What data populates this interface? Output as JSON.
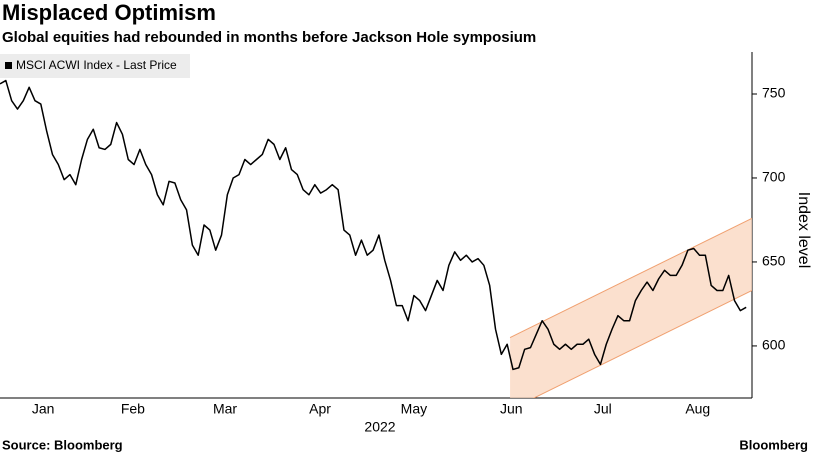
{
  "chart_data": {
    "type": "line",
    "title": "Misplaced Optimism",
    "subtitle": "Global equities had rebounded in months before Jackson Hole symposium",
    "legend_label": "MSCI ACWI Index - Last Price",
    "y_axis_label": "Index level",
    "x_axis_label": "2022",
    "source": "Source: Bloomberg",
    "brand": "Bloomberg",
    "color": "#000000",
    "values": [
      756,
      758,
      746,
      741,
      746,
      754,
      746,
      744,
      728,
      714,
      708,
      699,
      702,
      696,
      711,
      723,
      729,
      718,
      717,
      720,
      733,
      726,
      711,
      708,
      717,
      708,
      702,
      690,
      684,
      698,
      697,
      687,
      681,
      660,
      654,
      672,
      669,
      657,
      666,
      690,
      700,
      702,
      711,
      708,
      711,
      714,
      723,
      720,
      711,
      718,
      705,
      702,
      693,
      690,
      696,
      691,
      693,
      696,
      693,
      669,
      666,
      654,
      663,
      654,
      657,
      666,
      651,
      639,
      624,
      624,
      615,
      630,
      627,
      621,
      630,
      639,
      633,
      648,
      656,
      651,
      654,
      650,
      652,
      648,
      636,
      610,
      595,
      601,
      586,
      587,
      598,
      599,
      607,
      615,
      610,
      601,
      598,
      601,
      598,
      601,
      601,
      604,
      595,
      589,
      601,
      610,
      618,
      615,
      615,
      627,
      633,
      638,
      633,
      640,
      645,
      642,
      642,
      648,
      657,
      658,
      654,
      654,
      636,
      633,
      633,
      642,
      627,
      621,
      623
    ],
    "xlim": [
      0,
      129
    ],
    "xticks": [
      {
        "value": 7.4,
        "label": "Jan"
      },
      {
        "value": 22.8,
        "label": "Feb"
      },
      {
        "value": 38.6,
        "label": "Mar"
      },
      {
        "value": 54.9,
        "label": "Apr"
      },
      {
        "value": 71,
        "label": "May"
      },
      {
        "value": 87.7,
        "label": "Jun"
      },
      {
        "value": 103.4,
        "label": "Jul"
      },
      {
        "value": 119.7,
        "label": "Aug"
      }
    ],
    "ylim": [
      569,
      775
    ],
    "yticks": [
      600,
      650,
      700,
      750
    ],
    "channel": {
      "x": [
        87.5,
        129
      ],
      "upper": [
        605,
        676
      ],
      "lower": [
        562,
        633
      ],
      "color": "#f9d5bd",
      "edge": "#f0a070"
    }
  }
}
